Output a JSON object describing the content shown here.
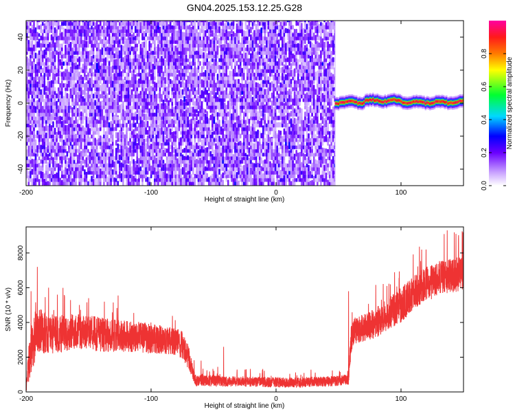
{
  "title": "GN04.2025.153.12.25.G28",
  "chart_data": [
    {
      "type": "heatmap",
      "xlabel": "Height of straight line (km)",
      "ylabel": "Frequency (Hz)",
      "xlim": [
        -200,
        150
      ],
      "ylim": [
        -50,
        50
      ],
      "x_ticks": [
        -200,
        -100,
        0,
        100
      ],
      "y_ticks": [
        -40,
        -20,
        0,
        20,
        40
      ],
      "colorbar": {
        "label": "Normalized spectral amplitude",
        "range": [
          0.0,
          1.0
        ],
        "ticks": [
          "0.0",
          "0.2",
          "0.4",
          "0.6",
          "0.8"
        ]
      },
      "regions": [
        {
          "x_range": [
            -200,
            47
          ],
          "freq_range": [
            -50,
            50
          ],
          "amplitude_range": [
            0.0,
            0.2
          ],
          "description_level": "broadband noise"
        },
        {
          "x_range": [
            47,
            150
          ],
          "freq_center": 0.5,
          "freq_halfwidth": 2,
          "amplitude_peak": 0.95
        }
      ]
    },
    {
      "type": "line",
      "xlabel": "Height of straight line (km)",
      "ylabel": "SNR (10 * v/v)",
      "xlim": [
        -200,
        150
      ],
      "ylim": [
        0,
        9500
      ],
      "x_ticks": [
        -200,
        -100,
        0,
        100
      ],
      "y_ticks": [
        0,
        2000,
        4000,
        6000,
        8000
      ],
      "color": "#ee3333",
      "series_envelope": {
        "x": [
          -200,
          -198,
          -195,
          -190,
          -185,
          -175,
          -160,
          -140,
          -120,
          -100,
          -90,
          -80,
          -75,
          -70,
          -66,
          -64,
          -60,
          -50,
          -40,
          -20,
          0,
          20,
          40,
          50,
          55,
          58,
          60,
          62,
          65,
          70,
          80,
          90,
          100,
          110,
          120,
          130,
          140,
          150
        ],
        "center": [
          200,
          1500,
          2800,
          3600,
          3400,
          3300,
          3500,
          3300,
          3200,
          3100,
          3000,
          2900,
          2700,
          2000,
          1000,
          600,
          700,
          650,
          600,
          600,
          550,
          550,
          600,
          650,
          700,
          700,
          3000,
          3400,
          3600,
          3700,
          4000,
          4500,
          5000,
          5700,
          6200,
          6500,
          6700,
          6800
        ],
        "spread": [
          200,
          1000,
          1600,
          1300,
          1200,
          1100,
          1000,
          1000,
          900,
          900,
          800,
          800,
          800,
          700,
          400,
          300,
          350,
          350,
          300,
          300,
          300,
          300,
          300,
          300,
          300,
          300,
          800,
          800,
          800,
          800,
          900,
          900,
          1000,
          1000,
          1000,
          1000,
          1000,
          1000
        ],
        "spikes": [
          [
            -191,
            7200
          ],
          [
            -196,
            5800
          ],
          [
            -182,
            6000
          ],
          [
            -175,
            5600
          ],
          [
            -150,
            5400
          ],
          [
            -60,
            1800
          ],
          [
            -42,
            2600
          ],
          [
            58,
            5800
          ],
          [
            120,
            8200
          ],
          [
            137,
            9300
          ],
          [
            144,
            9100
          ]
        ]
      }
    }
  ]
}
